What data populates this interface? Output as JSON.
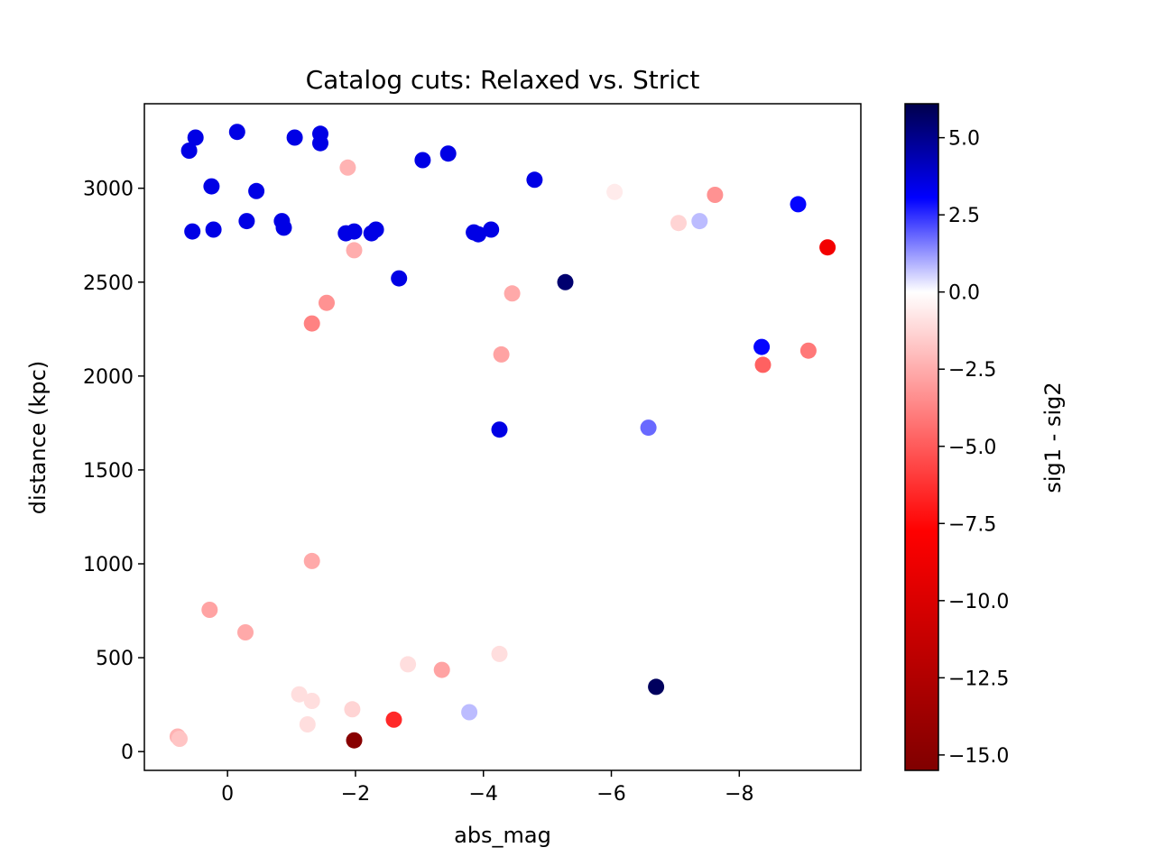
{
  "chart_data": {
    "type": "scatter",
    "title": "Catalog cuts: Relaxed vs. Strict",
    "xlabel": "abs_mag",
    "ylabel": "distance (kpc)",
    "colorbar_label": "sig1 - sig2",
    "xlim": [
      1.3,
      -9.9
    ],
    "ylim": [
      -100,
      3450
    ],
    "x_ticks": [
      0,
      -2,
      -4,
      -6,
      -8
    ],
    "x_tick_labels": [
      "0",
      "−2",
      "−4",
      "−6",
      "−8"
    ],
    "y_ticks": [
      0,
      500,
      1000,
      1500,
      2000,
      2500,
      3000
    ],
    "y_tick_labels": [
      "0",
      "500",
      "1000",
      "1500",
      "2000",
      "2500",
      "3000"
    ],
    "colorbar_range": [
      -15.5,
      6.1
    ],
    "colorbar_ticks": [
      5.0,
      2.5,
      0.0,
      -2.5,
      -5.0,
      -7.5,
      -10.0,
      -12.5,
      -15.0
    ],
    "colorbar_tick_labels": [
      "5.0",
      "2.5",
      "0.0",
      "−2.5",
      "−5.0",
      "−7.5",
      "−10.0",
      "−12.5",
      "−15.0"
    ],
    "colormap": "seismic_r",
    "grid": false,
    "points": [
      {
        "x": 0.6,
        "y": 3200,
        "c": 3.5
      },
      {
        "x": 0.5,
        "y": 3270,
        "c": 3.5
      },
      {
        "x": -0.15,
        "y": 3300,
        "c": 3.5
      },
      {
        "x": -1.05,
        "y": 3270,
        "c": 3.5
      },
      {
        "x": -1.45,
        "y": 3290,
        "c": 3.5
      },
      {
        "x": -1.45,
        "y": 3240,
        "c": 3.5
      },
      {
        "x": -3.05,
        "y": 3150,
        "c": 3.5
      },
      {
        "x": -3.45,
        "y": 3185,
        "c": 3.5
      },
      {
        "x": 0.25,
        "y": 3010,
        "c": 3.5
      },
      {
        "x": -0.45,
        "y": 2985,
        "c": 3.5
      },
      {
        "x": -4.8,
        "y": 3045,
        "c": 3.5
      },
      {
        "x": 0.55,
        "y": 2770,
        "c": 3.5
      },
      {
        "x": 0.22,
        "y": 2780,
        "c": 3.5
      },
      {
        "x": -0.3,
        "y": 2825,
        "c": 3.5
      },
      {
        "x": -0.85,
        "y": 2825,
        "c": 3.5
      },
      {
        "x": -0.88,
        "y": 2790,
        "c": 3.5
      },
      {
        "x": -1.85,
        "y": 2760,
        "c": 3.5
      },
      {
        "x": -1.98,
        "y": 2770,
        "c": 3.5
      },
      {
        "x": -2.25,
        "y": 2760,
        "c": 3.5
      },
      {
        "x": -2.32,
        "y": 2780,
        "c": 3.5
      },
      {
        "x": -3.85,
        "y": 2765,
        "c": 3.5
      },
      {
        "x": -3.92,
        "y": 2755,
        "c": 3.5
      },
      {
        "x": -4.12,
        "y": 2780,
        "c": 3.5
      },
      {
        "x": -2.68,
        "y": 2520,
        "c": 3.5
      },
      {
        "x": -5.28,
        "y": 2500,
        "c": 5.5
      },
      {
        "x": -8.92,
        "y": 2915,
        "c": 3.0
      },
      {
        "x": -8.35,
        "y": 2155,
        "c": 3.0
      },
      {
        "x": -4.25,
        "y": 1715,
        "c": 3.5
      },
      {
        "x": -6.58,
        "y": 1725,
        "c": 1.8
      },
      {
        "x": -7.38,
        "y": 2825,
        "c": 0.8
      },
      {
        "x": -6.7,
        "y": 345,
        "c": 5.8
      },
      {
        "x": -3.78,
        "y": 210,
        "c": 0.8
      },
      {
        "x": -1.88,
        "y": 3110,
        "c": -2.3
      },
      {
        "x": -1.98,
        "y": 2670,
        "c": -2.5
      },
      {
        "x": -1.55,
        "y": 2390,
        "c": -3.3
      },
      {
        "x": -1.32,
        "y": 2280,
        "c": -3.8
      },
      {
        "x": -4.45,
        "y": 2440,
        "c": -2.6
      },
      {
        "x": -4.28,
        "y": 2115,
        "c": -2.8
      },
      {
        "x": -6.05,
        "y": 2980,
        "c": -0.6
      },
      {
        "x": -7.05,
        "y": 2815,
        "c": -1.3
      },
      {
        "x": -7.62,
        "y": 2965,
        "c": -3.3
      },
      {
        "x": -9.38,
        "y": 2685,
        "c": -8.5
      },
      {
        "x": -8.37,
        "y": 2060,
        "c": -4.8
      },
      {
        "x": -9.08,
        "y": 2135,
        "c": -4.1
      },
      {
        "x": -1.32,
        "y": 1015,
        "c": -2.6
      },
      {
        "x": 0.28,
        "y": 755,
        "c": -2.8
      },
      {
        "x": -0.28,
        "y": 635,
        "c": -2.6
      },
      {
        "x": -2.82,
        "y": 465,
        "c": -1.0
      },
      {
        "x": -3.35,
        "y": 435,
        "c": -2.8
      },
      {
        "x": -4.25,
        "y": 520,
        "c": -1.0
      },
      {
        "x": -1.12,
        "y": 305,
        "c": -1.0
      },
      {
        "x": -1.32,
        "y": 270,
        "c": -1.0
      },
      {
        "x": -1.95,
        "y": 225,
        "c": -1.3
      },
      {
        "x": -1.25,
        "y": 145,
        "c": -1.0
      },
      {
        "x": -2.6,
        "y": 170,
        "c": -6.5
      },
      {
        "x": -1.98,
        "y": 60,
        "c": -15.0
      },
      {
        "x": 0.78,
        "y": 80,
        "c": -2.3
      },
      {
        "x": 0.75,
        "y": 68,
        "c": -1.8
      }
    ]
  }
}
